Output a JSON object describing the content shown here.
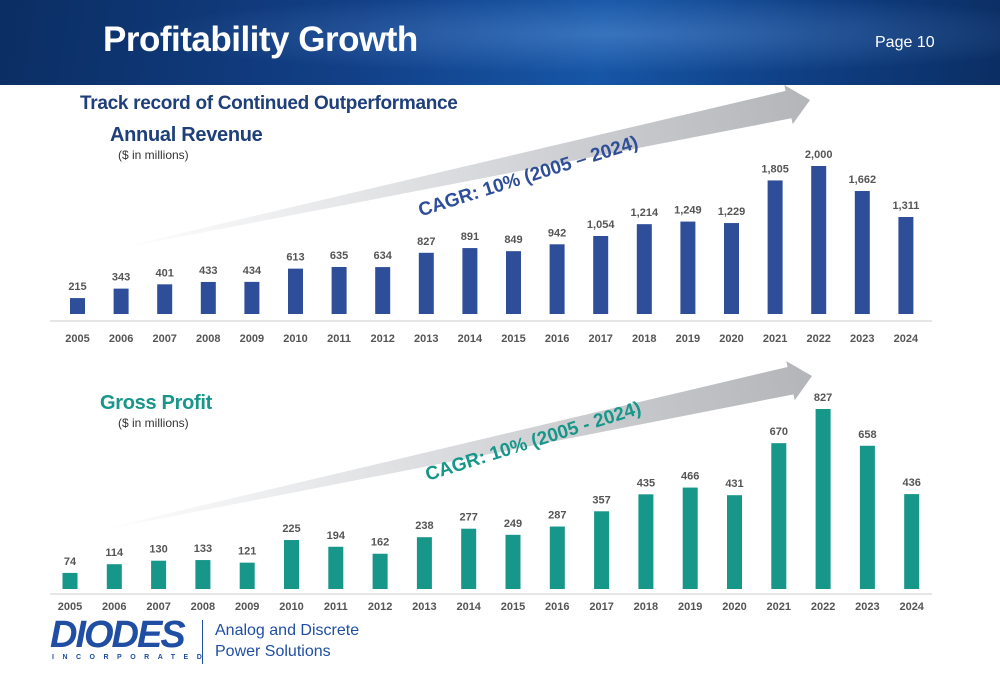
{
  "header": {
    "title": "Profitability Growth",
    "page": "Page 10"
  },
  "subtitle": "Track record of Continued Outperformance",
  "footer": {
    "logo": "DIODES",
    "logo_sub": "INCORPORATED",
    "tagline_line1": "Analog and Discrete",
    "tagline_line2": "Power Solutions"
  },
  "colors": {
    "revenue_bar": "#2e4e99",
    "gross_profit_bar": "#17968a",
    "arrow": "#b3b5b9",
    "header": "#123f86"
  },
  "chart_data": [
    {
      "type": "bar",
      "title": "Annual Revenue",
      "subtitle": "($ in millions)",
      "annotation": "CAGR: 10% (2005 – 2024)",
      "categories": [
        "2005",
        "2006",
        "2007",
        "2008",
        "2009",
        "2010",
        "2011",
        "2012",
        "2013",
        "2014",
        "2015",
        "2016",
        "2017",
        "2018",
        "2019",
        "2020",
        "2021",
        "2022",
        "2023",
        "2024"
      ],
      "values": [
        215,
        343,
        401,
        433,
        434,
        613,
        635,
        634,
        827,
        891,
        849,
        942,
        1054,
        1214,
        1249,
        1229,
        1805,
        2000,
        1662,
        1311
      ],
      "labels": [
        "215",
        "343",
        "401",
        "433",
        "434",
        "613",
        "635",
        "634",
        "827",
        "891",
        "849",
        "942",
        "1,054",
        "1,214",
        "1,249",
        "1,229",
        "1,805",
        "2,000",
        "1,662",
        "1,311"
      ],
      "ylim": [
        0,
        2000
      ],
      "grid": false
    },
    {
      "type": "bar",
      "title": "Gross Profit",
      "subtitle": "($ in millions)",
      "annotation": "CAGR: 10% (2005 - 2024)",
      "categories": [
        "2005",
        "2006",
        "2007",
        "2008",
        "2009",
        "2010",
        "2011",
        "2012",
        "2013",
        "2014",
        "2015",
        "2016",
        "2017",
        "2018",
        "2019",
        "2020",
        "2021",
        "2022",
        "2023",
        "2024"
      ],
      "values": [
        74,
        114,
        130,
        133,
        121,
        225,
        194,
        162,
        238,
        277,
        249,
        287,
        357,
        435,
        466,
        431,
        670,
        827,
        658,
        436
      ],
      "labels": [
        "74",
        "114",
        "130",
        "133",
        "121",
        "225",
        "194",
        "162",
        "238",
        "277",
        "249",
        "287",
        "357",
        "435",
        "466",
        "431",
        "670",
        "827",
        "658",
        "436"
      ],
      "ylim": [
        0,
        827
      ],
      "grid": false
    }
  ]
}
